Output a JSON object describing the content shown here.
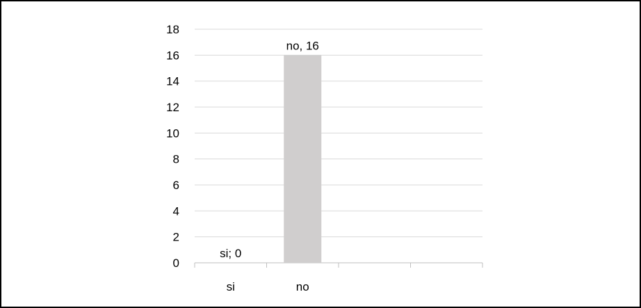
{
  "chart_data": {
    "type": "bar",
    "categories": [
      "si",
      "no",
      "",
      ""
    ],
    "values": [
      0,
      16,
      null,
      null
    ],
    "data_labels": [
      "si; 0",
      "no, 16",
      "",
      ""
    ],
    "title": "",
    "xlabel": "",
    "ylabel": "",
    "ylim": [
      0,
      18
    ],
    "yticks": [
      "0",
      "2",
      "4",
      "6",
      "8",
      "10",
      "12",
      "14",
      "16",
      "18"
    ],
    "grid": true,
    "legend": "none",
    "bar_color": "#d0cece",
    "grid_color": "#d9d9d9",
    "axis_color": "#bfbfbf"
  }
}
